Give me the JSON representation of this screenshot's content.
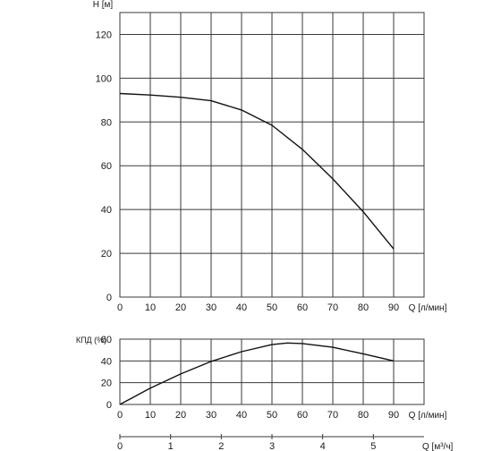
{
  "chart_data": [
    {
      "id": "head",
      "type": "line",
      "ylabel": "H [м]",
      "xlabel": "Q [л/мин]",
      "xlim": [
        0,
        100
      ],
      "ylim": [
        0,
        130
      ],
      "x_ticks": [
        0,
        10,
        20,
        30,
        40,
        50,
        60,
        70,
        80,
        90
      ],
      "y_ticks": [
        0,
        20,
        40,
        60,
        80,
        100,
        120
      ],
      "grid": true,
      "series": [
        {
          "x": [
            0,
            10,
            20,
            30,
            40,
            50,
            60,
            70,
            80,
            90
          ],
          "y": [
            93,
            92.3,
            91.3,
            89.7,
            85.5,
            78.5,
            67.5,
            54,
            39,
            22
          ]
        }
      ]
    },
    {
      "id": "efficiency",
      "type": "line",
      "ylabel": "КПД (%)",
      "xlabel": "Q [л/мин]",
      "xlim": [
        0,
        100
      ],
      "ylim": [
        0,
        60
      ],
      "x_ticks": [
        0,
        10,
        20,
        30,
        40,
        50,
        60,
        70,
        80,
        90
      ],
      "y_ticks": [
        0,
        20,
        40,
        60
      ],
      "grid": true,
      "series": [
        {
          "x": [
            0,
            10,
            20,
            30,
            40,
            50,
            55,
            60,
            70,
            80,
            90
          ],
          "y": [
            0,
            15,
            28,
            39.5,
            48.5,
            55,
            56.5,
            56,
            52.5,
            46.5,
            40
          ]
        }
      ]
    },
    {
      "id": "secondary-axis",
      "type": "axis",
      "xlabel": "Q [м³/ч]",
      "xlim": [
        0,
        6
      ],
      "x_ticks": [
        0,
        1,
        2,
        3,
        4,
        5
      ]
    }
  ]
}
